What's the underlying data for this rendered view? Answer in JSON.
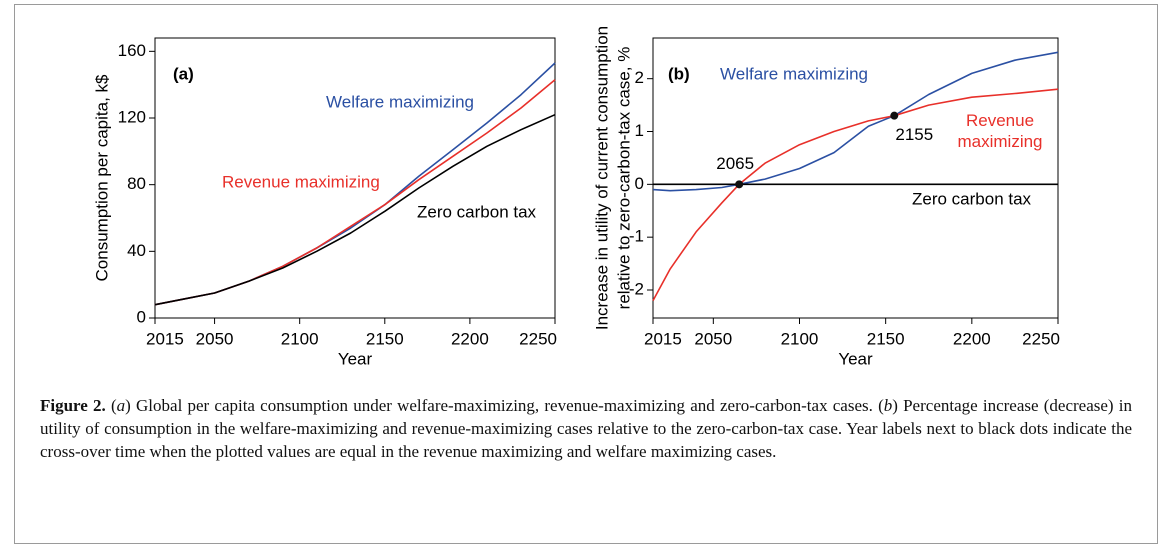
{
  "chart_data": [
    {
      "type": "line",
      "title": "(a)",
      "x_label": "Year",
      "y_label": [
        "Consumption per capita, k$"
      ],
      "x": [
        2015,
        2030,
        2050,
        2070,
        2090,
        2110,
        2130,
        2150,
        2170,
        2190,
        2210,
        2230,
        2250
      ],
      "series": [
        {
          "name": "Welfare maximizing",
          "color": "#2b50a3",
          "values": [
            8,
            11,
            15,
            22,
            31,
            42,
            54,
            68,
            85,
            101,
            117,
            134,
            153
          ]
        },
        {
          "name": "Revenue maximizing",
          "color": "#e8302a",
          "values": [
            8,
            11,
            15,
            22,
            31,
            42,
            55,
            68,
            83,
            97,
            111,
            126,
            143
          ]
        },
        {
          "name": "Zero carbon tax",
          "color": "#000000",
          "values": [
            8,
            11,
            15,
            22,
            30,
            40,
            51,
            64,
            78,
            91,
            103,
            113,
            122
          ]
        }
      ],
      "xlim": [
        2015,
        2250
      ],
      "xticks": [
        2015,
        2050,
        2100,
        2150,
        2200,
        2250
      ],
      "ylim": [
        0,
        168
      ],
      "yticks": [
        0,
        40,
        80,
        120,
        160
      ]
    },
    {
      "type": "line",
      "title": "(b)",
      "x_label": "Year",
      "y_label": [
        "Increase in utility of current consumption",
        "relative to zero-carbon-tax case, %"
      ],
      "x": [
        2015,
        2025,
        2040,
        2055,
        2065,
        2080,
        2100,
        2120,
        2140,
        2155,
        2175,
        2200,
        2225,
        2250
      ],
      "series": [
        {
          "name": "Welfare maximizing",
          "color": "#2b50a3",
          "values": [
            -0.1,
            -0.12,
            -0.1,
            -0.06,
            0,
            0.1,
            0.3,
            0.6,
            1.1,
            1.3,
            1.7,
            2.1,
            2.35,
            2.5
          ]
        },
        {
          "name": "Revenue maximizing",
          "color": "#e8302a",
          "values": [
            -2.2,
            -1.6,
            -0.9,
            -0.35,
            0,
            0.4,
            0.75,
            1.0,
            1.2,
            1.3,
            1.5,
            1.65,
            1.72,
            1.8
          ]
        },
        {
          "name": "Zero carbon tax",
          "color": "#000000",
          "values": [
            0,
            0,
            0,
            0,
            0,
            0,
            0,
            0,
            0,
            0,
            0,
            0,
            0,
            0
          ]
        }
      ],
      "crossovers": [
        {
          "x": 2065,
          "y": 0
        },
        {
          "x": 2155,
          "y": 1.3
        }
      ],
      "xlim": [
        2015,
        2250
      ],
      "xticks": [
        2015,
        2050,
        2100,
        2150,
        2200,
        2250
      ],
      "ylim": [
        -2.53,
        2.77
      ],
      "yticks": [
        -2,
        -1,
        0,
        1,
        2
      ]
    }
  ],
  "caption": {
    "label": "Figure 2.",
    "parts": [
      "(",
      "a",
      ") Global per capita consumption under welfare-maximizing, revenue-maximizing and zero-carbon-tax cases. (",
      "b",
      ") Percentage increase (decrease) in utility of consumption in the welfare-maximizing and revenue-maximizing cases relative to the zero-carbon-tax case. Year labels next to black dots indicate the cross-over time when the plotted values are equal in the revenue maximizing and welfare maximizing cases."
    ]
  }
}
